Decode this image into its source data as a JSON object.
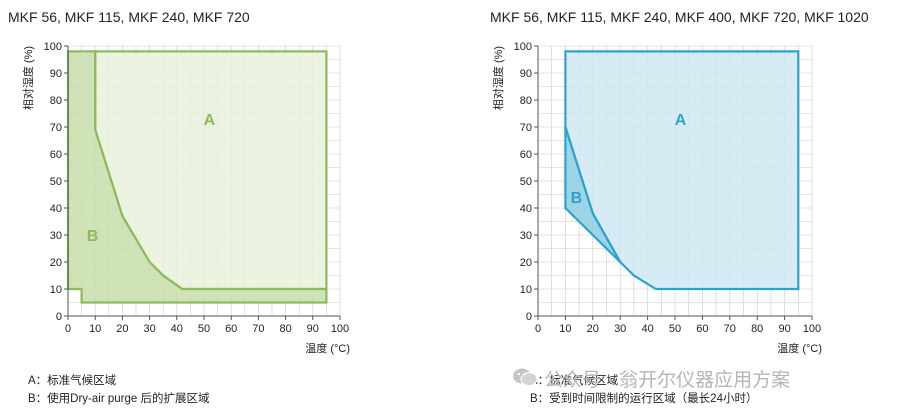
{
  "chart_data": [
    {
      "type": "area",
      "title": "MKF 56, MKF 115, MKF 240, MKF 720",
      "xlabel": "温度 (°C)",
      "ylabel": "相对湿度 (%)",
      "xlim": [
        0,
        100
      ],
      "ylim": [
        0,
        100
      ],
      "xticks": [
        0,
        10,
        20,
        30,
        40,
        50,
        60,
        70,
        80,
        90,
        100
      ],
      "yticks": [
        0,
        10,
        20,
        30,
        40,
        50,
        60,
        70,
        80,
        90,
        100
      ],
      "grid": true,
      "series": [
        {
          "name": "A",
          "label": "A",
          "color": "#8dba5b",
          "fill": "#e9f1dc",
          "points": [
            [
              10,
              98
            ],
            [
              95,
              98
            ],
            [
              95,
              10
            ],
            [
              42,
              10
            ],
            [
              35,
              15
            ],
            [
              30,
              20
            ],
            [
              20,
              37
            ],
            [
              10,
              69
            ]
          ]
        },
        {
          "name": "B",
          "label": "B",
          "color": "#8dba5b",
          "fill": "#c8deab",
          "points": [
            [
              0,
              98
            ],
            [
              10,
              98
            ],
            [
              10,
              69
            ],
            [
              20,
              37
            ],
            [
              30,
              20
            ],
            [
              35,
              15
            ],
            [
              42,
              10
            ],
            [
              95,
              10
            ],
            [
              95,
              5
            ],
            [
              5,
              5
            ],
            [
              5,
              10
            ],
            [
              0,
              10
            ]
          ]
        }
      ],
      "label_positions": {
        "A": [
          52,
          73
        ],
        "B": [
          9,
          30
        ]
      }
    },
    {
      "type": "area",
      "title": "MKF 56, MKF 115, MKF 240, MKF 400, MKF 720, MKF 1020",
      "xlabel": "温度 (°C)",
      "ylabel": "相对湿度 (%)",
      "xlim": [
        0,
        100
      ],
      "ylim": [
        0,
        100
      ],
      "xticks": [
        0,
        10,
        20,
        30,
        40,
        50,
        60,
        70,
        80,
        90,
        100
      ],
      "yticks": [
        0,
        10,
        20,
        30,
        40,
        50,
        60,
        70,
        80,
        90,
        100
      ],
      "grid": true,
      "series": [
        {
          "name": "A",
          "label": "A",
          "color": "#2aa4cf",
          "fill": "#cfe8f1",
          "points": [
            [
              10,
              98
            ],
            [
              95,
              98
            ],
            [
              95,
              10
            ],
            [
              43,
              10
            ],
            [
              35,
              15
            ],
            [
              30,
              20
            ],
            [
              20,
              38
            ],
            [
              10,
              70
            ]
          ]
        },
        {
          "name": "B",
          "label": "B",
          "color": "#2aa4cf",
          "fill": "#8ecde3",
          "points": [
            [
              10,
              70
            ],
            [
              20,
              38
            ],
            [
              30,
              20
            ],
            [
              10,
              40
            ]
          ]
        }
      ],
      "label_positions": {
        "A": [
          52,
          73
        ],
        "B": [
          14,
          44
        ]
      }
    }
  ],
  "legend_left": [
    "A：标准气候区域",
    "B：使用Dry-air purge 后的扩展区域"
  ],
  "legend_right": [
    "A：标准气候区域",
    "B：受到时间限制的运行区域（最长24小时）"
  ],
  "watermark": {
    "text": "公众号 · 翁开尔仪器应用方案",
    "icon": "wechat-icon"
  }
}
